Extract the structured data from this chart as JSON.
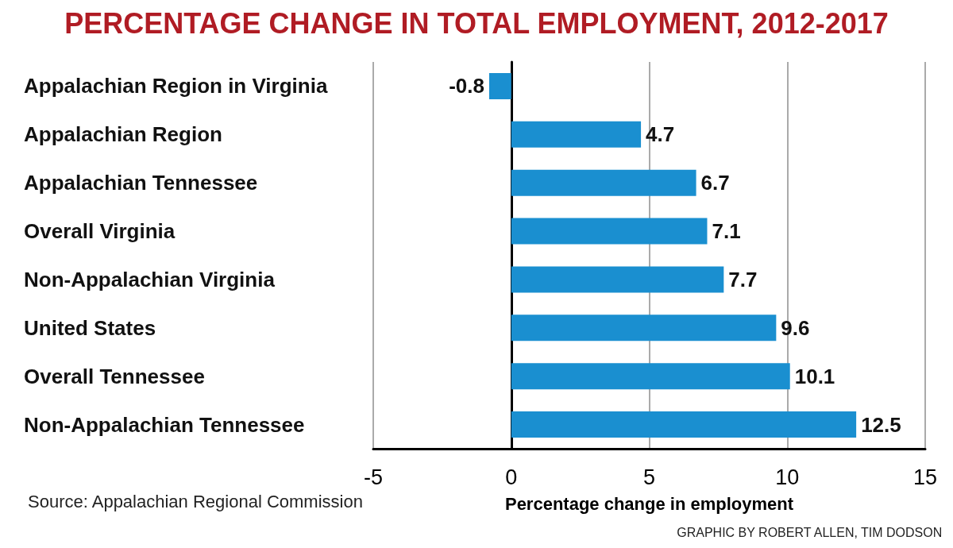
{
  "chart_data": {
    "type": "bar",
    "orientation": "horizontal",
    "title": "PERCENTAGE CHANGE IN TOTAL EMPLOYMENT, 2012-2017",
    "categories": [
      "Appalachian Region in Virginia",
      "Appalachian Region",
      "Appalachian Tennessee",
      "Overall Virginia",
      "Non-Appalachian Virginia",
      "United States",
      "Overall Tennessee",
      "Non-Appalachian Tennessee"
    ],
    "values": [
      -0.8,
      4.7,
      6.7,
      7.1,
      7.7,
      9.6,
      10.1,
      12.5
    ],
    "color": "#1a8fd0",
    "xlim": [
      -5,
      15
    ],
    "xticks": [
      -5,
      0,
      5,
      10,
      15
    ],
    "xlabel": "Percentage change in employment",
    "grid": "x",
    "data_labels": true,
    "annotations": [
      "Source: Appalachian Regional Commission",
      "GRAPHIC BY ROBERT ALLEN, TIM DODSON"
    ]
  }
}
